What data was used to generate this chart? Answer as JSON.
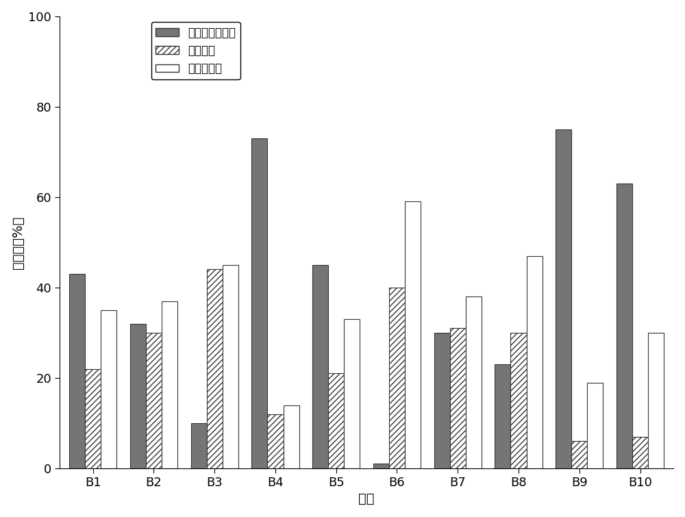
{
  "categories": [
    "B1",
    "B2",
    "B3",
    "B4",
    "B5",
    "B6",
    "B7",
    "B8",
    "B9",
    "B10"
  ],
  "series_shellfish": [
    43,
    32,
    10,
    73,
    45,
    1,
    30,
    23,
    75,
    63
  ],
  "series_seaweed": [
    22,
    30,
    44,
    12,
    21,
    40,
    31,
    30,
    6,
    7
  ],
  "series_soil": [
    35,
    37,
    45,
    14,
    33,
    59,
    38,
    47,
    19,
    30
  ],
  "color_shellfish": "#757575",
  "color_seaweed": "white",
  "color_soil": "white",
  "edge_color": "#333333",
  "hatch_shellfish": "",
  "hatch_seaweed": "////",
  "hatch_soil": "",
  "legend_shellfish": "贝类生物沉积物",
  "legend_seaweed": "海藻养殖",
  "legend_soil": "土壤有机质",
  "ylabel": "贡献率（%）",
  "xlabel": "站位",
  "ylim_min": 0,
  "ylim_max": 100,
  "yticks": [
    0,
    20,
    40,
    60,
    80,
    100
  ],
  "bar_width": 0.26,
  "background_color": "#ffffff"
}
